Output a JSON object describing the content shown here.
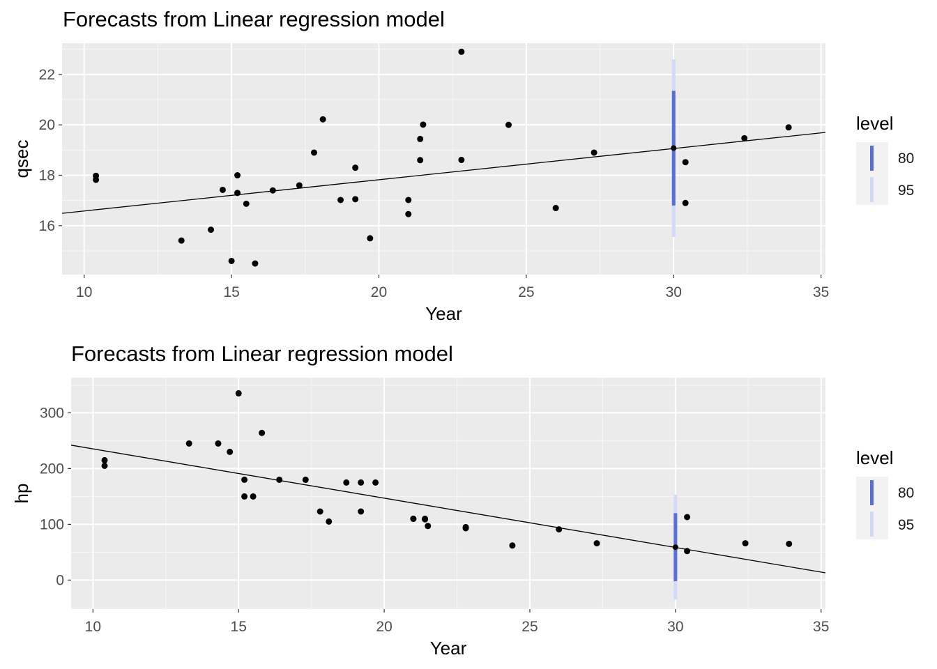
{
  "chart_data": [
    {
      "type": "scatter",
      "title": "Forecasts from Linear regression model",
      "xlabel": "Year",
      "ylabel": "qsec",
      "xlim": [
        9.25,
        35.15
      ],
      "ylim": [
        14.06,
        23.24
      ],
      "x_ticks": [
        10,
        15,
        20,
        25,
        30,
        35
      ],
      "y_ticks": [
        16,
        18,
        20,
        22
      ],
      "grid": true,
      "legend_position": "right",
      "legend": {
        "title": "level",
        "entries": [
          {
            "label": "80",
            "color": "#5a6fd6"
          },
          {
            "label": "95",
            "color": "#d3daf8"
          }
        ]
      },
      "points": {
        "x": [
          21.0,
          21.0,
          22.8,
          21.4,
          18.7,
          18.1,
          14.3,
          24.4,
          22.8,
          19.2,
          17.8,
          16.4,
          17.3,
          15.2,
          10.4,
          10.4,
          14.7,
          32.4,
          30.4,
          33.9,
          21.5,
          15.5,
          15.2,
          13.3,
          19.2,
          27.3,
          26.0,
          30.4,
          15.8,
          19.7,
          15.0,
          21.4
        ],
        "y": [
          16.46,
          17.02,
          18.61,
          19.44,
          17.02,
          20.22,
          15.84,
          20.0,
          22.9,
          18.3,
          18.9,
          17.4,
          17.6,
          18.0,
          17.98,
          17.82,
          17.42,
          19.47,
          18.52,
          19.9,
          20.01,
          16.87,
          17.3,
          15.41,
          17.05,
          18.9,
          16.7,
          16.9,
          14.5,
          15.5,
          14.6,
          18.6
        ]
      },
      "fit_line": {
        "x": [
          9.25,
          35.15
        ],
        "y": [
          16.49,
          19.7
        ]
      },
      "forecast": {
        "x": 30,
        "mean": 19.08,
        "lower_80": 16.8,
        "upper_80": 21.35,
        "lower_95": 15.55,
        "upper_95": 22.6
      }
    },
    {
      "type": "scatter",
      "title": "Forecasts from Linear regression model",
      "xlabel": "Year",
      "ylabel": "hp",
      "xlim": [
        9.25,
        35.15
      ],
      "ylim": [
        -52,
        363
      ],
      "x_ticks": [
        10,
        15,
        20,
        25,
        30,
        35
      ],
      "y_ticks": [
        0,
        100,
        200,
        300
      ],
      "grid": true,
      "legend_position": "right",
      "legend": {
        "title": "level",
        "entries": [
          {
            "label": "80",
            "color": "#5a6fd6"
          },
          {
            "label": "95",
            "color": "#d3daf8"
          }
        ]
      },
      "points": {
        "x": [
          21.0,
          21.0,
          22.8,
          21.4,
          18.7,
          18.1,
          14.3,
          24.4,
          22.8,
          19.2,
          17.8,
          16.4,
          17.3,
          15.2,
          10.4,
          10.4,
          14.7,
          32.4,
          30.4,
          33.9,
          21.5,
          15.5,
          15.2,
          13.3,
          19.2,
          27.3,
          26.0,
          30.4,
          15.8,
          19.7,
          15.0,
          21.4
        ],
        "y": [
          110,
          110,
          93,
          110,
          175,
          105,
          245,
          62,
          95,
          123,
          123,
          180,
          180,
          180,
          205,
          215,
          230,
          66,
          52,
          65,
          97,
          150,
          150,
          245,
          175,
          66,
          91,
          113,
          264,
          175,
          335,
          109
        ]
      },
      "fit_line": {
        "x": [
          9.25,
          35.15
        ],
        "y": [
          242,
          13
        ]
      },
      "forecast": {
        "x": 30,
        "mean": 59,
        "lower_80": -2,
        "upper_80": 120,
        "lower_95": -35,
        "upper_95": 153
      }
    }
  ]
}
